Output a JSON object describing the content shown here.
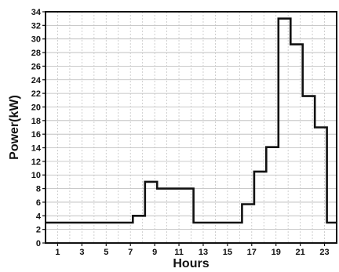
{
  "chart_data": {
    "type": "line",
    "step": true,
    "xlabel": "Hours",
    "ylabel": "Power(kW)",
    "xlim": [
      0,
      24
    ],
    "ylim": [
      0,
      34
    ],
    "grid": true,
    "x_ticks": [
      1,
      3,
      5,
      7,
      9,
      11,
      13,
      15,
      17,
      19,
      21,
      23
    ],
    "y_ticks": [
      0,
      2,
      4,
      6,
      8,
      10,
      12,
      14,
      16,
      18,
      20,
      22,
      24,
      26,
      28,
      30,
      32,
      34
    ],
    "series": [
      {
        "points": [
          [
            0,
            3
          ],
          [
            7.2,
            3
          ],
          [
            7.2,
            4
          ],
          [
            8.2,
            4
          ],
          [
            8.2,
            9
          ],
          [
            9.2,
            9
          ],
          [
            9.2,
            8
          ],
          [
            12.2,
            8
          ],
          [
            12.2,
            3
          ],
          [
            16.2,
            3
          ],
          [
            16.2,
            5.7
          ],
          [
            17.2,
            5.7
          ],
          [
            17.2,
            10.5
          ],
          [
            18.2,
            10.5
          ],
          [
            18.2,
            14.1
          ],
          [
            19.2,
            14.1
          ],
          [
            19.2,
            33
          ],
          [
            20.2,
            33
          ],
          [
            20.2,
            29.2
          ],
          [
            21.2,
            29.2
          ],
          [
            21.2,
            21.6
          ],
          [
            22.2,
            21.6
          ],
          [
            22.2,
            17
          ],
          [
            23.2,
            17
          ],
          [
            23.2,
            3
          ],
          [
            24,
            3
          ]
        ],
        "color": "#111111"
      }
    ]
  }
}
